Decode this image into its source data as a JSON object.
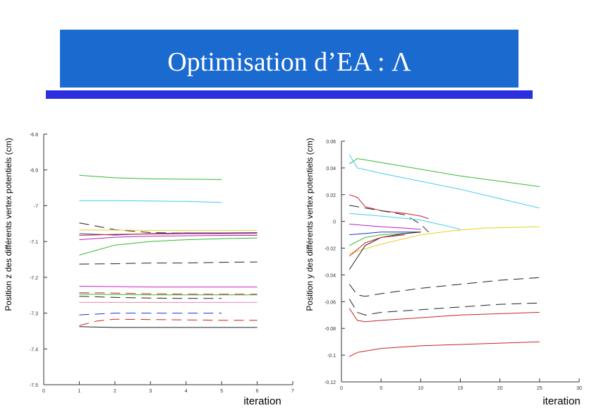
{
  "title": "Optimisation d’EA : Λ",
  "colors": {
    "title_bg": "#1a6ad0",
    "title_rule": "#2a2fe0",
    "title_text": "#ffffff"
  },
  "chart_data": [
    {
      "type": "line",
      "ylabel": "Position z des différents vertex potentiels (cm)",
      "xlabel": "iteration",
      "xlim": [
        0,
        7
      ],
      "ylim": [
        -7.5,
        -6.8
      ],
      "xticks": [
        "0",
        "1",
        "2",
        "3",
        "4",
        "5",
        "6",
        "7"
      ],
      "yticks": [
        "-6.8",
        "-6.9",
        "-7",
        "-7.1",
        "-7.2",
        "-7.3",
        "-7.4",
        "-7.5"
      ],
      "series": [
        {
          "name": "s1",
          "color": "#33bb33",
          "dash": false,
          "x": [
            1,
            2,
            3,
            4,
            5
          ],
          "y": [
            -6.915,
            -6.922,
            -6.925,
            -6.926,
            -6.927
          ]
        },
        {
          "name": "s2",
          "color": "#44ccee",
          "dash": false,
          "x": [
            1,
            2,
            3,
            4,
            5
          ],
          "y": [
            -6.986,
            -6.986,
            -6.987,
            -6.988,
            -6.991
          ]
        },
        {
          "name": "s3",
          "color": "#222222",
          "dash": true,
          "x": [
            1,
            2,
            3,
            4,
            5,
            6
          ],
          "y": [
            -7.048,
            -7.067,
            -7.075,
            -7.077,
            -7.078,
            -7.078
          ]
        },
        {
          "name": "s4",
          "color": "#2233cc",
          "dash": false,
          "x": [
            1,
            2,
            3,
            4,
            5,
            6
          ],
          "y": [
            -7.078,
            -7.082,
            -7.078,
            -7.076,
            -7.076,
            -7.075
          ]
        },
        {
          "name": "s5",
          "color": "#bb22bb",
          "dash": false,
          "x": [
            1,
            2,
            3,
            4,
            5,
            6
          ],
          "y": [
            -7.095,
            -7.088,
            -7.085,
            -7.084,
            -7.083,
            -7.083
          ]
        },
        {
          "name": "s6",
          "color": "#33bb33",
          "dash": false,
          "x": [
            1,
            2,
            3,
            4,
            5,
            6
          ],
          "y": [
            -7.138,
            -7.11,
            -7.1,
            -7.095,
            -7.092,
            -7.09
          ]
        },
        {
          "name": "s7",
          "color": "#eecc22",
          "dash": false,
          "x": [
            1,
            2,
            3,
            4,
            5,
            6
          ],
          "y": [
            -7.068,
            -7.068,
            -7.069,
            -7.069,
            -7.069,
            -7.069
          ]
        },
        {
          "name": "s8",
          "color": "#cc2222",
          "dash": false,
          "x": [
            1,
            2,
            3,
            4,
            5,
            6
          ],
          "y": [
            -7.083,
            -7.08,
            -7.079,
            -7.078,
            -7.078,
            -7.078
          ]
        },
        {
          "name": "s9",
          "color": "#222222",
          "dash": true,
          "x": [
            1,
            2,
            3,
            4,
            5,
            6
          ],
          "y": [
            -7.163,
            -7.162,
            -7.16,
            -7.16,
            -7.158,
            -7.157
          ]
        },
        {
          "name": "s10",
          "color": "#cc22cc",
          "dash": false,
          "x": [
            1,
            2,
            3,
            4,
            5,
            6
          ],
          "y": [
            -7.225,
            -7.226,
            -7.227,
            -7.227,
            -7.227,
            -7.227
          ]
        },
        {
          "name": "s11",
          "color": "#cc2222",
          "dash": true,
          "x": [
            1,
            2,
            3,
            4,
            5,
            6
          ],
          "y": [
            -7.243,
            -7.244,
            -7.246,
            -7.247,
            -7.247,
            -7.247
          ]
        },
        {
          "name": "s12",
          "color": "#33bb33",
          "dash": false,
          "x": [
            1,
            2,
            3,
            4,
            5,
            6
          ],
          "y": [
            -7.247,
            -7.248,
            -7.249,
            -7.249,
            -7.249,
            -7.249
          ]
        },
        {
          "name": "s13",
          "color": "#ee88aa",
          "dash": false,
          "x": [
            1,
            2,
            3,
            4,
            5,
            6
          ],
          "y": [
            -7.27,
            -7.27,
            -7.27,
            -7.27,
            -7.27,
            -7.27
          ]
        },
        {
          "name": "s14",
          "color": "#222222",
          "dash": true,
          "x": [
            1,
            2,
            3,
            4,
            5
          ],
          "y": [
            -7.253,
            -7.256,
            -7.258,
            -7.259,
            -7.259
          ]
        },
        {
          "name": "s15",
          "color": "#2233cc",
          "dash": true,
          "x": [
            1,
            2,
            3,
            4,
            5
          ],
          "y": [
            -7.305,
            -7.3,
            -7.3,
            -7.3,
            -7.3
          ]
        },
        {
          "name": "s16",
          "color": "#cc2222",
          "dash": true,
          "x": [
            1,
            1.5,
            2,
            3,
            4,
            5,
            6
          ],
          "y": [
            -7.335,
            -7.322,
            -7.317,
            -7.318,
            -7.319,
            -7.32,
            -7.32
          ]
        },
        {
          "name": "s17",
          "color": "#222222",
          "dash": false,
          "x": [
            1,
            2,
            3,
            4,
            5,
            6
          ],
          "y": [
            -7.338,
            -7.34,
            -7.34,
            -7.34,
            -7.34,
            -7.34
          ]
        }
      ]
    },
    {
      "type": "line",
      "ylabel": "Position y des différents vertex potentiels (cm)",
      "xlabel": "iteration",
      "xlim": [
        0,
        30
      ],
      "ylim": [
        -0.12,
        0.06
      ],
      "xticks": [
        "0",
        "5",
        "10",
        "15",
        "20",
        "25",
        "30"
      ],
      "yticks": [
        "0.06",
        "0.04",
        "0.02",
        "0",
        "-0.02",
        "-0.04",
        "-0.06",
        "-0.08",
        "-0.1",
        "-0.12"
      ],
      "series": [
        {
          "name": "t1",
          "color": "#33bb33",
          "dash": false,
          "x": [
            1,
            2,
            5,
            10,
            15,
            20,
            25
          ],
          "y": [
            0.043,
            0.047,
            0.044,
            0.039,
            0.034,
            0.03,
            0.026
          ]
        },
        {
          "name": "t2",
          "color": "#44ccee",
          "dash": false,
          "x": [
            1,
            2,
            5,
            10,
            15,
            20,
            25
          ],
          "y": [
            0.05,
            0.04,
            0.036,
            0.03,
            0.024,
            0.017,
            0.01
          ]
        },
        {
          "name": "t3",
          "color": "#cc2222",
          "dash": false,
          "x": [
            1,
            2,
            3,
            5,
            8,
            10,
            11
          ],
          "y": [
            0.02,
            0.018,
            0.011,
            0.008,
            0.006,
            0.004,
            0.002
          ]
        },
        {
          "name": "t4",
          "color": "#222222",
          "dash": true,
          "x": [
            1,
            3,
            5,
            8,
            10,
            11
          ],
          "y": [
            0.012,
            0.01,
            0.008,
            0.005,
            -0.002,
            -0.008
          ]
        },
        {
          "name": "t5",
          "color": "#44ccee",
          "dash": false,
          "x": [
            1,
            5,
            10,
            13,
            15
          ],
          "y": [
            0.006,
            0.004,
            0.001,
            -0.003,
            -0.006
          ]
        },
        {
          "name": "t6",
          "color": "#eecc22",
          "dash": false,
          "x": [
            1,
            5,
            10,
            14,
            18,
            25
          ],
          "y": [
            -0.024,
            -0.017,
            -0.01,
            -0.007,
            -0.005,
            -0.004
          ]
        },
        {
          "name": "t7",
          "color": "#33bb33",
          "dash": false,
          "x": [
            1,
            3,
            5,
            8,
            10
          ],
          "y": [
            -0.018,
            -0.012,
            -0.01,
            -0.009,
            -0.008
          ]
        },
        {
          "name": "t8",
          "color": "#2233cc",
          "dash": false,
          "x": [
            1,
            3,
            5,
            8,
            10
          ],
          "y": [
            -0.01,
            -0.009,
            -0.008,
            -0.008,
            -0.008
          ]
        },
        {
          "name": "t9",
          "color": "#222222",
          "dash": false,
          "x": [
            1,
            3,
            5,
            8,
            10
          ],
          "y": [
            -0.036,
            -0.018,
            -0.012,
            -0.009,
            -0.008
          ]
        },
        {
          "name": "t10",
          "color": "#bb22bb",
          "dash": false,
          "x": [
            1,
            3,
            5,
            8,
            10
          ],
          "y": [
            -0.002,
            -0.003,
            -0.004,
            -0.005,
            -0.006
          ]
        },
        {
          "name": "t11",
          "color": "#cc2222",
          "dash": false,
          "x": [
            1,
            3,
            5,
            8
          ],
          "y": [
            -0.026,
            -0.016,
            -0.012,
            -0.01
          ]
        },
        {
          "name": "t12",
          "color": "#222222",
          "dash": true,
          "x": [
            1,
            2,
            3,
            5,
            10,
            15,
            20,
            25
          ],
          "y": [
            -0.047,
            -0.055,
            -0.056,
            -0.054,
            -0.05,
            -0.047,
            -0.044,
            -0.042
          ]
        },
        {
          "name": "t13",
          "color": "#222222",
          "dash": true,
          "x": [
            1,
            2,
            3,
            5,
            10,
            15,
            20,
            25
          ],
          "y": [
            -0.058,
            -0.068,
            -0.07,
            -0.068,
            -0.066,
            -0.064,
            -0.062,
            -0.061
          ]
        },
        {
          "name": "t14",
          "color": "#cc2222",
          "dash": false,
          "x": [
            1,
            2,
            3,
            5,
            10,
            15,
            20,
            25
          ],
          "y": [
            -0.065,
            -0.074,
            -0.075,
            -0.074,
            -0.072,
            -0.07,
            -0.069,
            -0.068
          ]
        },
        {
          "name": "t15",
          "color": "#cc2222",
          "dash": false,
          "x": [
            1,
            2,
            5,
            10,
            15,
            20,
            25
          ],
          "y": [
            -0.101,
            -0.098,
            -0.095,
            -0.093,
            -0.092,
            -0.091,
            -0.09
          ]
        }
      ]
    }
  ]
}
